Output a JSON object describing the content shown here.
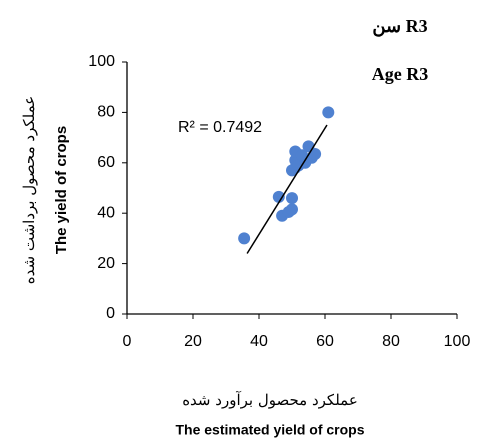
{
  "chart_data": {
    "type": "scatter",
    "title": "سن R3",
    "subtitle": "Age R3",
    "y_label_fa": "عملکرد محصول برداشت شده",
    "y_label": "The yield of crops",
    "x_label_fa": "عملکرد محصول برآورد شده",
    "x_label": "The estimated yield of crops",
    "annotation": "R² = 0.7492",
    "x": [
      35.5,
      46,
      47,
      49,
      50,
      50,
      50,
      51,
      51,
      51,
      52,
      53,
      54,
      55,
      56,
      57,
      61
    ],
    "series": [
      {
        "name": "yield",
        "color": "#4f81d0",
        "values": [
          30,
          46.5,
          39,
          40.5,
          41.5,
          46,
          57,
          58,
          61,
          64.5,
          59,
          63,
          60,
          66.5,
          62,
          63.5,
          80
        ]
      }
    ],
    "trendline": {
      "x": [
        36.4,
        60.6
      ],
      "y": [
        24,
        75
      ]
    },
    "xlim": [
      0,
      100
    ],
    "xticks": [
      0,
      20,
      40,
      60,
      80,
      100
    ],
    "ylim": [
      0,
      100
    ],
    "yticks": [
      0,
      20,
      40,
      60,
      80,
      100
    ]
  }
}
